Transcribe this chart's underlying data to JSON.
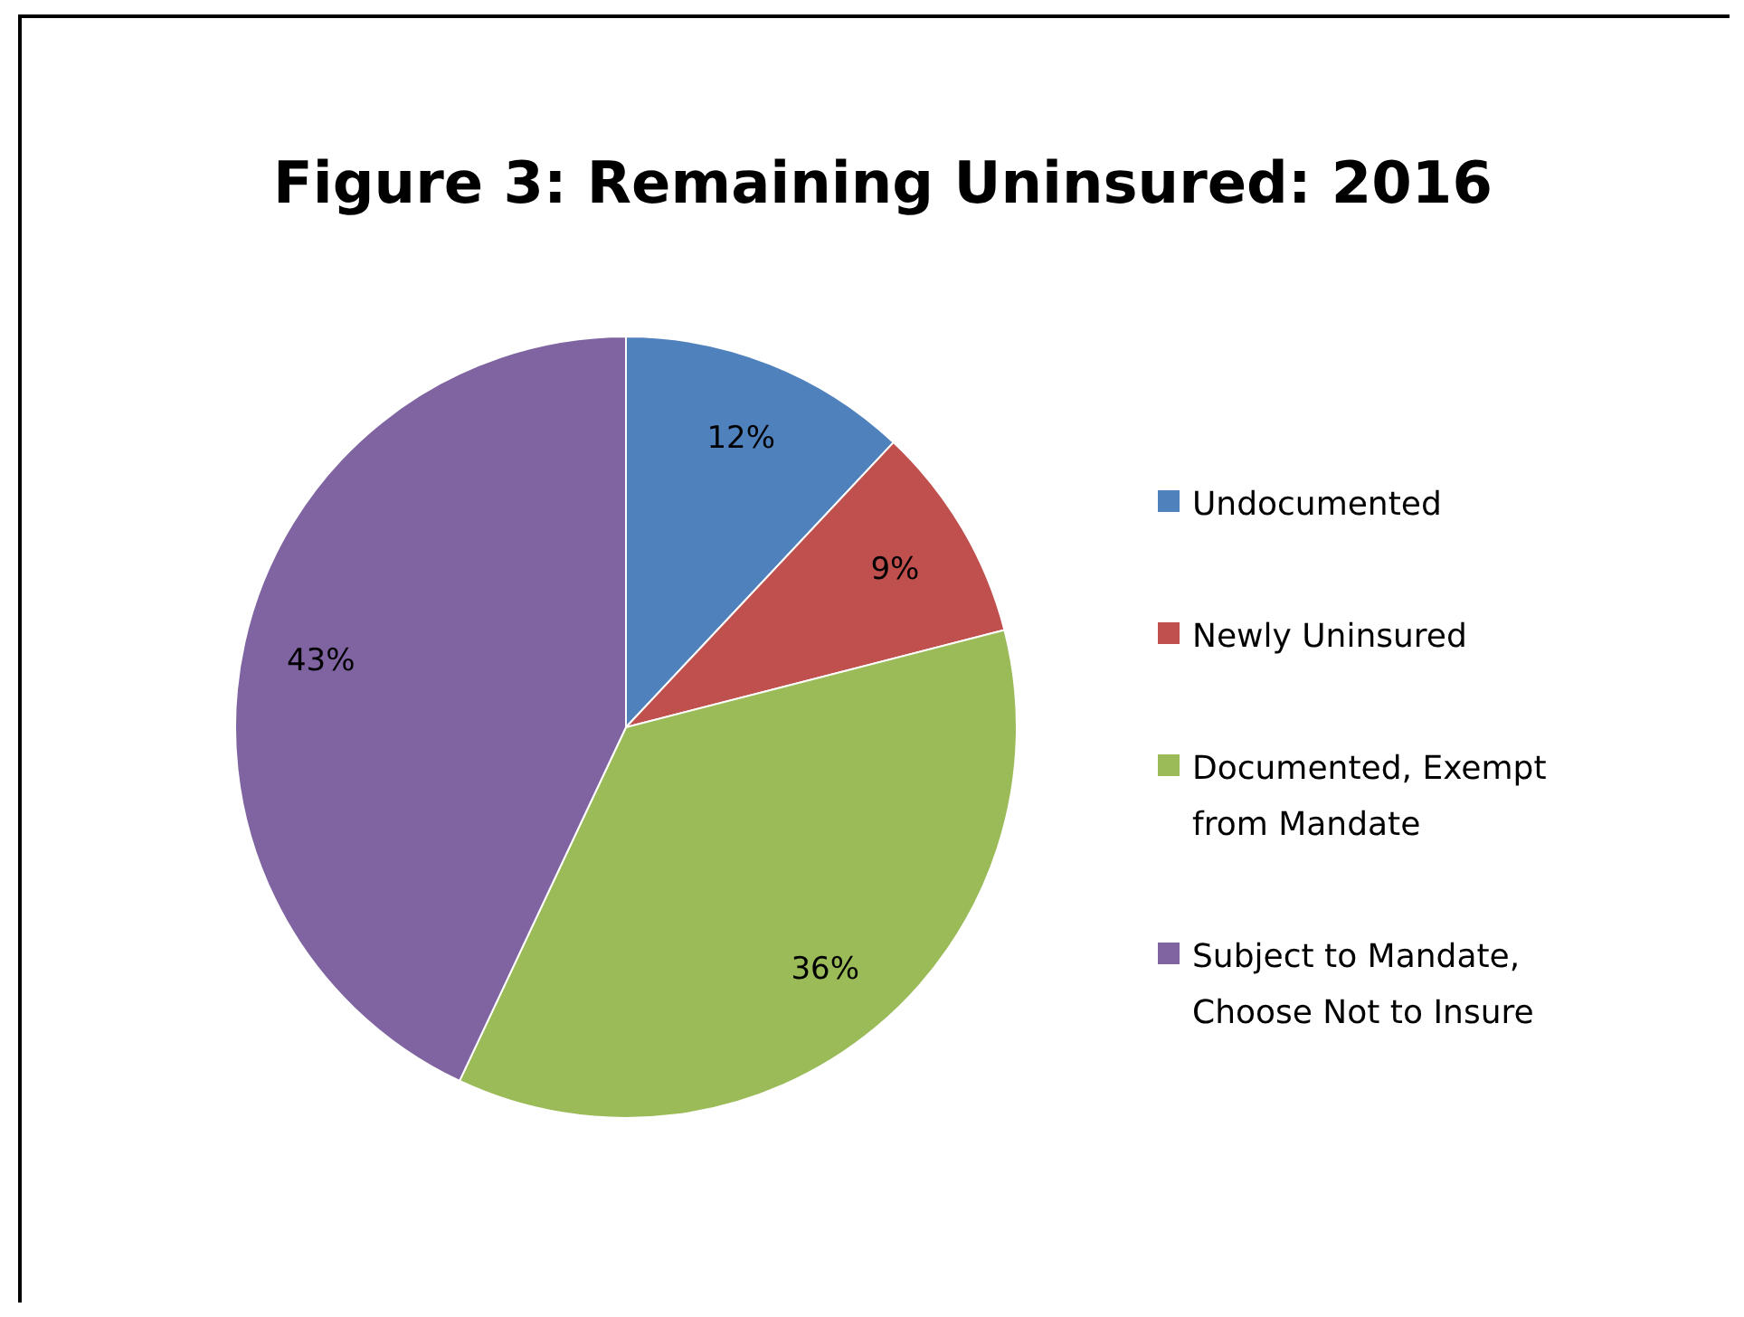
{
  "chart_data": {
    "type": "pie",
    "title": "Figure 3: Remaining Uninsured: 2016",
    "categories": [
      "Undocumented",
      "Newly Uninsured",
      "Documented, Exempt from Mandate",
      "Subject to Mandate, Choose Not to Insure"
    ],
    "values": [
      12,
      9,
      36,
      43
    ],
    "colors": [
      "#4f81bd",
      "#c0504d",
      "#9bbb59",
      "#8064a2"
    ],
    "value_labels": [
      "12%",
      "9%",
      "36%",
      "43%"
    ],
    "legend": "right"
  }
}
